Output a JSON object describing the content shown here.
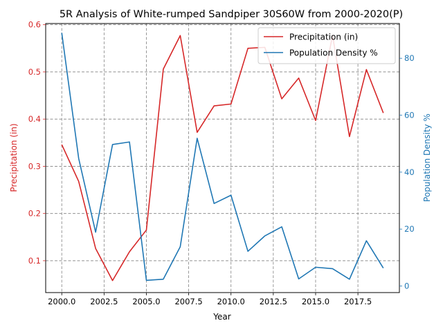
{
  "chart_data": {
    "type": "line",
    "title": "5R Analysis of White-rumped Sandpiper 30S60W from 2000-2020(P)",
    "xlabel": "Year",
    "ylabel_left": "Precipitation (in)",
    "ylabel_right": "Population Density %",
    "xlim": [
      1999.05,
      2019.95
    ],
    "ylim_left": [
      0.0325,
      0.6025
    ],
    "ylim_right": [
      -2.3,
      92.2
    ],
    "x_ticks": [
      2000.0,
      2002.5,
      2005.0,
      2007.5,
      2010.0,
      2012.5,
      2015.0,
      2017.5
    ],
    "y_ticks_left": [
      0.1,
      0.2,
      0.3,
      0.4,
      0.5,
      0.6
    ],
    "y_ticks_right": [
      0,
      20,
      40,
      60,
      80
    ],
    "x_tick_labels": [
      "2000.0",
      "2002.5",
      "2005.0",
      "2007.5",
      "2010.0",
      "2012.5",
      "2015.0",
      "2017.5"
    ],
    "y_tick_labels_left": [
      "0.1",
      "0.2",
      "0.3",
      "0.4",
      "0.5",
      "0.6"
    ],
    "y_tick_labels_right": [
      "0",
      "20",
      "40",
      "60",
      "80"
    ],
    "grid": true,
    "legend_position": "top-right",
    "x": [
      2000,
      2001,
      2002,
      2003,
      2004,
      2005,
      2006,
      2007,
      2008,
      2009,
      2010,
      2011,
      2012,
      2013,
      2014,
      2015,
      2016,
      2017,
      2018,
      2019
    ],
    "series": [
      {
        "name": "Precipitation (in)",
        "axis": "left",
        "color": "#d62728",
        "values": [
          0.346,
          0.268,
          0.126,
          0.058,
          0.119,
          0.165,
          0.506,
          0.577,
          0.372,
          0.428,
          0.432,
          0.55,
          0.552,
          0.443,
          0.487,
          0.397,
          0.577,
          0.363,
          0.505,
          0.413
        ]
      },
      {
        "name": "Population Density %",
        "axis": "right",
        "color": "#1f77b4",
        "values": [
          88.9,
          44.8,
          18.9,
          49.7,
          50.6,
          2.0,
          2.4,
          13.8,
          51.9,
          29.0,
          31.9,
          12.2,
          17.6,
          20.8,
          2.5,
          6.6,
          6.1,
          2.4,
          15.9,
          6.3
        ]
      }
    ]
  }
}
